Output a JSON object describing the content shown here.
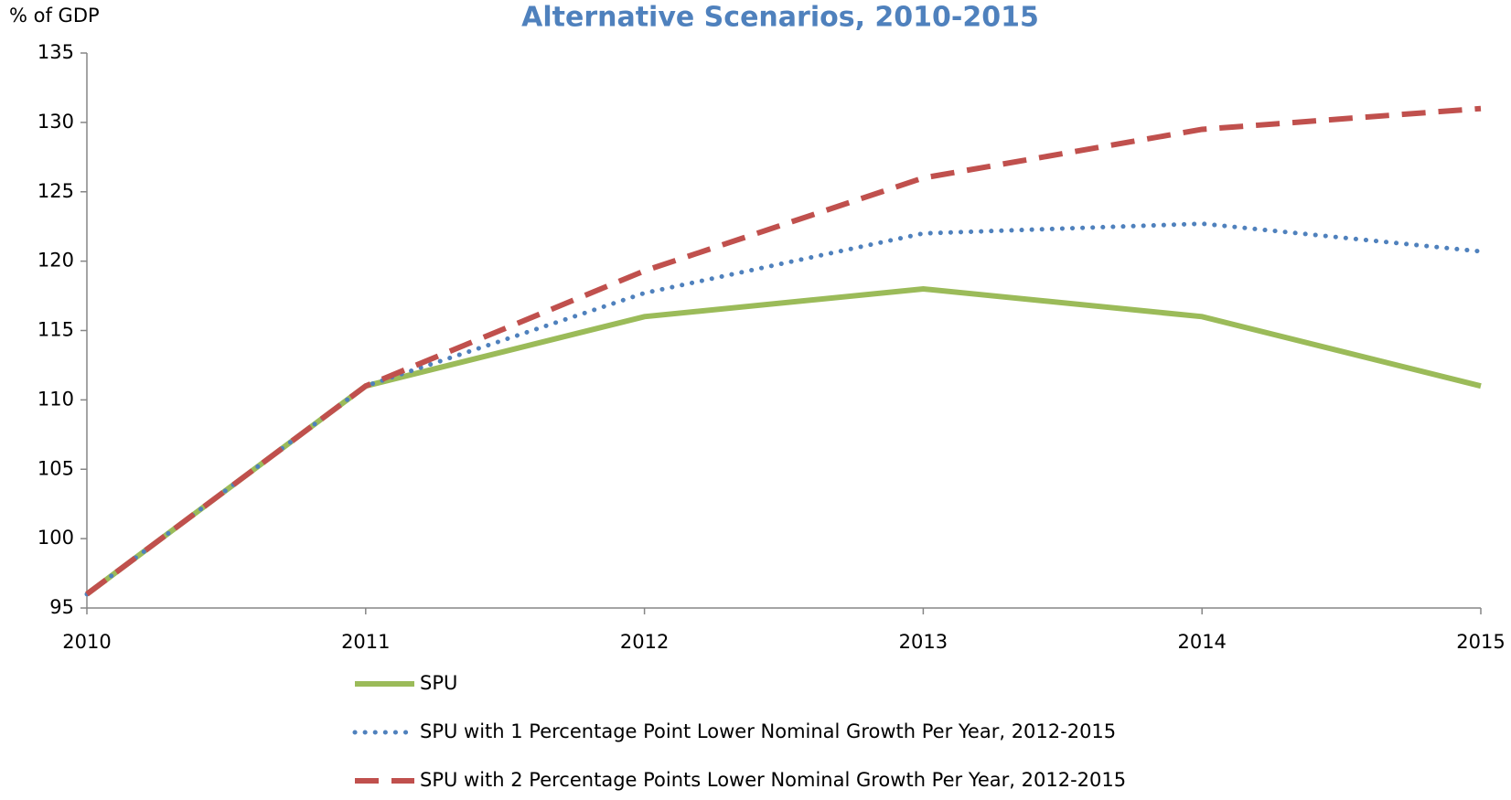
{
  "chart_data": {
    "type": "line",
    "title": "Alternative Scenarios, 2010-2015",
    "y_label": "% of GDP",
    "x": [
      2010,
      2011,
      2012,
      2013,
      2014,
      2015
    ],
    "xlim": [
      2010,
      2015
    ],
    "xticks": [
      2010,
      2011,
      2012,
      2013,
      2014,
      2015
    ],
    "ylim": [
      95,
      135
    ],
    "yticks": [
      95,
      100,
      105,
      110,
      115,
      120,
      125,
      130,
      135
    ],
    "grid": false,
    "legend": "bottom",
    "series": [
      {
        "name": "SPU",
        "color": "#9bbb59",
        "style": "solid",
        "values": [
          96,
          111,
          116,
          118,
          116,
          111
        ]
      },
      {
        "name": "SPU with 1 Percentage Point Lower Nominal Growth Per Year, 2012-2015",
        "color": "#4f81bd",
        "style": "dotted",
        "values": [
          96,
          111,
          117.7,
          122,
          122.7,
          120.7
        ]
      },
      {
        "name": "SPU with 2 Percentage Points Lower Nominal Growth Per Year, 2012-2015",
        "color": "#c0504d",
        "style": "dashed",
        "values": [
          96,
          111,
          119.3,
          126,
          129.5,
          131
        ]
      }
    ]
  }
}
